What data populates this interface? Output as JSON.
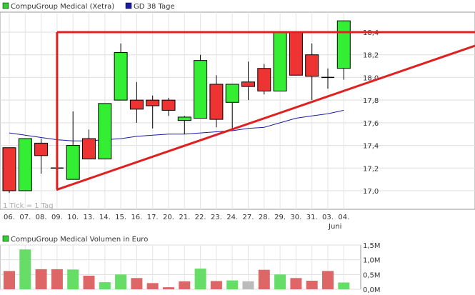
{
  "price_chart": {
    "legend": [
      {
        "label": "CompuGroup Medical (Xetra)",
        "color": "#33cc33"
      },
      {
        "label": "GD 38 Tage",
        "color": "#1a1aa0"
      }
    ],
    "tick_note": "1 Tick = 1 Tag",
    "y_ticks": [
      "18,4",
      "18,2",
      "18,0",
      "17,8",
      "17,6",
      "17,4",
      "17,2",
      "17,0"
    ],
    "x_ticks": [
      "06.",
      "07.",
      "08.",
      "09.",
      "10.",
      "13.",
      "14.",
      "15.",
      "16.",
      "17.",
      "20.",
      "21.",
      "22.",
      "23.",
      "24.",
      "27.",
      "28.",
      "29.",
      "30.",
      "31.",
      "03.",
      "04."
    ],
    "month_label": "Juni"
  },
  "volume_chart": {
    "legend": [
      {
        "label": "CompuGroup Medical Volumen in Euro",
        "color": "#33cc33"
      }
    ],
    "y_ticks": [
      "1,5M",
      "1,0M",
      "0,5M",
      "0,0M"
    ]
  },
  "chart_data": [
    {
      "type": "candlestick",
      "series": [
        {
          "name": "CompuGroup Medical (Xetra)",
          "x": [
            "06.",
            "07.",
            "08.",
            "09.",
            "10.",
            "13.",
            "14.",
            "15.",
            "16.",
            "17.",
            "20.",
            "21.",
            "22.",
            "23.",
            "24.",
            "27.",
            "28.",
            "29.",
            "30.",
            "31.",
            "03.",
            "04."
          ],
          "open": [
            17.38,
            17.0,
            17.42,
            17.2,
            17.1,
            17.46,
            17.28,
            17.8,
            17.8,
            17.8,
            17.8,
            17.62,
            17.64,
            17.94,
            17.78,
            17.96,
            18.08,
            17.88,
            18.4,
            18.2,
            18.0,
            18.08
          ],
          "high": [
            17.38,
            17.46,
            17.46,
            17.46,
            17.7,
            17.54,
            17.77,
            18.3,
            17.96,
            17.84,
            17.82,
            17.66,
            18.2,
            18.02,
            17.94,
            18.14,
            18.12,
            18.4,
            18.4,
            18.3,
            18.08,
            18.5
          ],
          "low": [
            16.98,
            17.0,
            17.15,
            17.0,
            17.1,
            17.28,
            17.28,
            17.8,
            17.6,
            17.55,
            17.66,
            17.5,
            17.64,
            17.56,
            17.55,
            17.8,
            17.85,
            17.88,
            18.02,
            17.8,
            17.9,
            17.98
          ],
          "close": [
            17.0,
            17.46,
            17.31,
            17.2,
            17.4,
            17.28,
            17.77,
            18.22,
            17.72,
            17.75,
            17.71,
            17.65,
            18.15,
            17.63,
            17.94,
            17.92,
            17.88,
            18.4,
            18.02,
            18.01,
            18.0,
            18.5
          ]
        },
        {
          "name": "GD 38 Tage",
          "x": [
            "06.",
            "07.",
            "08.",
            "09.",
            "10.",
            "13.",
            "14.",
            "15.",
            "16.",
            "17.",
            "20.",
            "21.",
            "22.",
            "23.",
            "24.",
            "27.",
            "28.",
            "29.",
            "30.",
            "31.",
            "03.",
            "04."
          ],
          "values": [
            17.51,
            17.49,
            17.47,
            17.45,
            17.44,
            17.44,
            17.45,
            17.46,
            17.48,
            17.49,
            17.5,
            17.5,
            17.51,
            17.52,
            17.53,
            17.55,
            17.56,
            17.6,
            17.64,
            17.66,
            17.68,
            17.71
          ]
        }
      ],
      "annotations": [
        {
          "type": "resistance-line",
          "value": 18.4,
          "from": "09.",
          "to": "right-edge"
        },
        {
          "type": "resistance-line-vertical",
          "x": "09.",
          "from": 17.01,
          "to": 18.4
        },
        {
          "type": "support-trendline",
          "from": {
            "x": "09.",
            "y": 17.01
          },
          "to": {
            "x": "right-edge",
            "y": 18.28
          }
        }
      ],
      "ylim": [
        16.9,
        18.5
      ],
      "grid": true,
      "legend_position": "top-left"
    },
    {
      "type": "bar",
      "series": [
        {
          "name": "CompuGroup Medical Volumen in Euro",
          "categories": [
            "06.",
            "07.",
            "08.",
            "09.",
            "10.",
            "13.",
            "14.",
            "15.",
            "16.",
            "17.",
            "20.",
            "21.",
            "22.",
            "23.",
            "24.",
            "27.",
            "28.",
            "29.",
            "30.",
            "31.",
            "03.",
            "04."
          ],
          "values": [
            0.62,
            1.35,
            0.68,
            0.68,
            0.67,
            0.46,
            0.24,
            0.5,
            0.38,
            0.21,
            0.07,
            0.27,
            0.7,
            0.28,
            0.3,
            0.27,
            0.66,
            0.5,
            0.38,
            0.29,
            0.62,
            0.23
          ],
          "colors": [
            "#dd6666",
            "#66dd66",
            "#dd6666",
            "#dd6666",
            "#66dd66",
            "#dd6666",
            "#66dd66",
            "#66dd66",
            "#dd6666",
            "#dd6666",
            "#dd6666",
            "#dd6666",
            "#66dd66",
            "#dd6666",
            "#66dd66",
            "#bbbbbb",
            "#dd6666",
            "#66dd66",
            "#dd6666",
            "#dd6666",
            "#dd6666",
            "#66dd66"
          ]
        }
      ],
      "unit": "M",
      "ylim": [
        0,
        1.5
      ],
      "grid": true,
      "legend_position": "top-left"
    }
  ]
}
